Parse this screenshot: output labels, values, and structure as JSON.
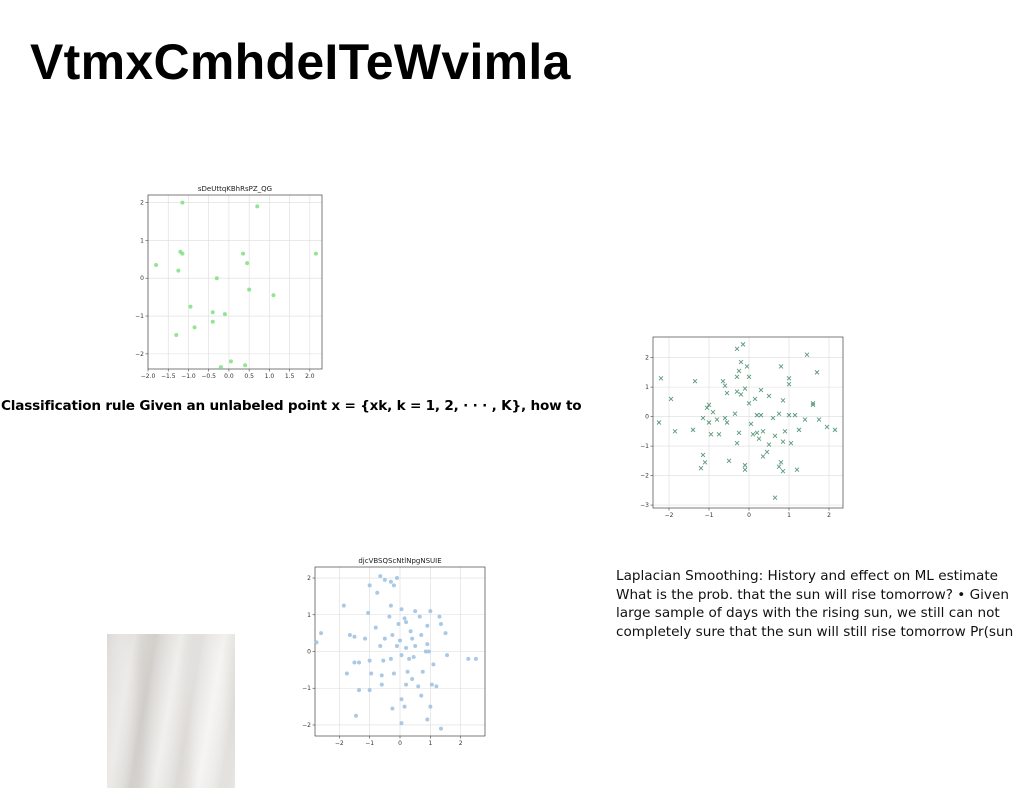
{
  "page": {
    "title": "VtmxCmhdeITeWvimla",
    "rule_text": "Classification rule Given an unlabeled point x = {xk, k = 1, 2, · · · , K}, how to",
    "smoothing_lines": [
      "Laplacian Smoothing: History and effect on ML estimate",
      "What is the prob. that the sun will rise tomorrow? • Given",
      "large sample of days with the rising sun, we still can not",
      "completely sure that the sun will still rise tomorrow Pr(sun"
    ],
    "photo_icon": "fabric-photo"
  },
  "chart_data": [
    {
      "type": "scatter",
      "title": "sDeUttqKBhRsPZ_QG",
      "marker": "dot",
      "color": "#7fe07f",
      "grid": true,
      "xlim": [
        -2.0,
        2.3
      ],
      "ylim": [
        -2.4,
        2.2
      ],
      "xticks": [
        -2.0,
        -1.5,
        -1.0,
        -0.5,
        0.0,
        0.5,
        1.0,
        1.5,
        2.0
      ],
      "xtick_labels": [
        "−2.0",
        "−1.5",
        "−1.0",
        "−0.5",
        "0.0",
        "0.5",
        "1.0",
        "1.5",
        "2.0"
      ],
      "yticks": [
        -2,
        -1,
        0,
        1,
        2
      ],
      "ytick_labels": [
        "−2",
        "−1",
        "0",
        "1",
        "2"
      ],
      "points": [
        [
          -1.15,
          2.0
        ],
        [
          0.7,
          1.9
        ],
        [
          -1.2,
          0.7
        ],
        [
          -1.15,
          0.65
        ],
        [
          -1.8,
          0.35
        ],
        [
          -1.25,
          0.2
        ],
        [
          -0.3,
          0.0
        ],
        [
          0.35,
          0.65
        ],
        [
          0.45,
          0.4
        ],
        [
          2.15,
          0.65
        ],
        [
          0.5,
          -0.3
        ],
        [
          1.1,
          -0.45
        ],
        [
          -0.95,
          -0.75
        ],
        [
          -0.4,
          -0.9
        ],
        [
          -0.1,
          -0.95
        ],
        [
          -0.4,
          -1.15
        ],
        [
          -0.85,
          -1.3
        ],
        [
          -1.3,
          -1.5
        ],
        [
          0.05,
          -2.2
        ],
        [
          0.4,
          -2.3
        ],
        [
          -0.2,
          -2.35
        ]
      ]
    },
    {
      "type": "scatter",
      "title": "",
      "marker": "x",
      "color": "#5a9a7a",
      "grid": true,
      "xlim": [
        -2.4,
        2.35
      ],
      "ylim": [
        -3.1,
        2.7
      ],
      "xticks": [
        -2,
        -1,
        0,
        1,
        2
      ],
      "xtick_labels": [
        "−2",
        "−1",
        "0",
        "1",
        "2"
      ],
      "yticks": [
        -3,
        -2,
        -1,
        0,
        1,
        2
      ],
      "ytick_labels": [
        "−3",
        "−2",
        "−1",
        "0",
        "1",
        "2"
      ],
      "points": [
        [
          -0.15,
          2.45
        ],
        [
          -0.3,
          2.3
        ],
        [
          1.45,
          2.1
        ],
        [
          -0.2,
          1.85
        ],
        [
          -0.05,
          1.7
        ],
        [
          -0.25,
          1.55
        ],
        [
          0.8,
          1.7
        ],
        [
          -2.2,
          1.3
        ],
        [
          -0.65,
          1.2
        ],
        [
          -0.3,
          1.35
        ],
        [
          0.0,
          1.35
        ],
        [
          1.0,
          1.3
        ],
        [
          1.7,
          1.5
        ],
        [
          -1.35,
          1.2
        ],
        [
          -0.6,
          1.05
        ],
        [
          1.0,
          1.1
        ],
        [
          -1.95,
          0.6
        ],
        [
          -0.55,
          0.8
        ],
        [
          -0.3,
          0.85
        ],
        [
          -0.1,
          0.95
        ],
        [
          -0.2,
          0.75
        ],
        [
          0.3,
          0.9
        ],
        [
          0.5,
          0.7
        ],
        [
          0.85,
          0.55
        ],
        [
          1.6,
          0.45
        ],
        [
          -1.0,
          0.4
        ],
        [
          -0.9,
          0.15
        ],
        [
          0.0,
          0.45
        ],
        [
          0.15,
          0.6
        ],
        [
          -0.35,
          0.1
        ],
        [
          0.3,
          0.05
        ],
        [
          0.75,
          0.1
        ],
        [
          1.15,
          0.05
        ],
        [
          -1.05,
          0.3
        ],
        [
          -0.8,
          -0.1
        ],
        [
          -0.6,
          -0.05
        ],
        [
          0.05,
          -0.25
        ],
        [
          0.2,
          0.05
        ],
        [
          0.6,
          -0.05
        ],
        [
          1.0,
          0.05
        ],
        [
          1.4,
          -0.1
        ],
        [
          1.75,
          -0.1
        ],
        [
          -2.25,
          -0.2
        ],
        [
          -1.15,
          -0.05
        ],
        [
          -1.0,
          -0.2
        ],
        [
          -0.55,
          -0.2
        ],
        [
          -0.25,
          -0.55
        ],
        [
          0.35,
          -0.5
        ],
        [
          0.65,
          -0.65
        ],
        [
          0.9,
          -0.5
        ],
        [
          1.25,
          -0.45
        ],
        [
          1.95,
          -0.35
        ],
        [
          -1.85,
          -0.5
        ],
        [
          -1.4,
          -0.45
        ],
        [
          -0.95,
          -0.6
        ],
        [
          -0.75,
          -0.6
        ],
        [
          -0.3,
          -0.9
        ],
        [
          0.25,
          -0.75
        ],
        [
          0.5,
          -0.95
        ],
        [
          0.85,
          -0.85
        ],
        [
          1.05,
          -0.9
        ],
        [
          2.15,
          -0.45
        ],
        [
          0.2,
          -0.55
        ],
        [
          -1.15,
          -1.3
        ],
        [
          -1.1,
          -1.55
        ],
        [
          -1.2,
          -1.75
        ],
        [
          -0.5,
          -1.5
        ],
        [
          0.45,
          -1.2
        ],
        [
          0.35,
          -1.35
        ],
        [
          0.8,
          -1.55
        ],
        [
          0.75,
          -1.7
        ],
        [
          -0.1,
          -1.65
        ],
        [
          -0.1,
          -1.8
        ],
        [
          0.85,
          -1.85
        ],
        [
          1.2,
          -1.8
        ],
        [
          0.65,
          -2.75
        ],
        [
          1.6,
          0.4
        ],
        [
          0.1,
          -0.6
        ]
      ]
    },
    {
      "type": "scatter",
      "title": "djcVBSQScNtlNpgNSUIE",
      "marker": "dot",
      "color": "#9bbfe0",
      "grid": true,
      "xlim": [
        -2.8,
        2.8
      ],
      "ylim": [
        -2.3,
        2.3
      ],
      "xticks": [
        -2,
        -1,
        0,
        1,
        2
      ],
      "xtick_labels": [
        "−2",
        "−1",
        "0",
        "1",
        "2"
      ],
      "yticks": [
        -2,
        -1,
        0,
        1,
        2
      ],
      "ytick_labels": [
        "−2",
        "−1",
        "0",
        "1",
        "2"
      ],
      "points": [
        [
          -0.65,
          2.05
        ],
        [
          -0.5,
          1.95
        ],
        [
          -0.1,
          2.0
        ],
        [
          -1.0,
          1.8
        ],
        [
          -0.75,
          1.6
        ],
        [
          -0.3,
          1.9
        ],
        [
          -0.2,
          1.8
        ],
        [
          -1.85,
          1.25
        ],
        [
          0.05,
          1.15
        ],
        [
          0.5,
          1.1
        ],
        [
          1.0,
          1.1
        ],
        [
          -1.05,
          1.05
        ],
        [
          -0.35,
          0.95
        ],
        [
          0.15,
          0.9
        ],
        [
          0.65,
          0.95
        ],
        [
          1.3,
          0.95
        ],
        [
          -2.6,
          0.5
        ],
        [
          -1.65,
          0.45
        ],
        [
          -1.5,
          0.4
        ],
        [
          -0.8,
          0.65
        ],
        [
          -0.05,
          0.75
        ],
        [
          0.2,
          0.8
        ],
        [
          0.35,
          0.55
        ],
        [
          0.9,
          0.7
        ],
        [
          1.35,
          0.75
        ],
        [
          -2.75,
          0.25
        ],
        [
          -1.15,
          0.35
        ],
        [
          -0.5,
          0.35
        ],
        [
          -0.25,
          0.45
        ],
        [
          0.0,
          0.3
        ],
        [
          0.4,
          0.35
        ],
        [
          0.7,
          0.45
        ],
        [
          1.5,
          0.5
        ],
        [
          -0.65,
          0.15
        ],
        [
          -0.1,
          0.15
        ],
        [
          0.2,
          0.1
        ],
        [
          0.5,
          0.15
        ],
        [
          0.9,
          0.2
        ],
        [
          -1.5,
          -0.3
        ],
        [
          -1.35,
          -0.3
        ],
        [
          -1.0,
          -0.25
        ],
        [
          -0.55,
          -0.25
        ],
        [
          -0.3,
          -0.2
        ],
        [
          0.05,
          -0.1
        ],
        [
          0.45,
          -0.15
        ],
        [
          0.85,
          0.0
        ],
        [
          0.95,
          0.0
        ],
        [
          1.55,
          -0.1
        ],
        [
          2.25,
          -0.2
        ],
        [
          2.5,
          -0.2
        ],
        [
          -1.75,
          -0.6
        ],
        [
          -0.95,
          -0.6
        ],
        [
          -0.6,
          -0.65
        ],
        [
          -0.2,
          -0.6
        ],
        [
          0.25,
          -0.55
        ],
        [
          0.4,
          -0.75
        ],
        [
          0.75,
          -0.55
        ],
        [
          1.1,
          -0.35
        ],
        [
          -1.35,
          -1.05
        ],
        [
          -1.0,
          -1.05
        ],
        [
          -0.6,
          -0.9
        ],
        [
          0.2,
          -0.9
        ],
        [
          0.6,
          -0.95
        ],
        [
          1.05,
          -0.9
        ],
        [
          1.2,
          -0.95
        ],
        [
          0.05,
          -1.3
        ],
        [
          0.7,
          -1.2
        ],
        [
          -0.25,
          -1.55
        ],
        [
          0.15,
          -1.5
        ],
        [
          1.0,
          -1.5
        ],
        [
          -1.45,
          -1.75
        ],
        [
          0.05,
          -1.95
        ],
        [
          0.9,
          -1.85
        ],
        [
          1.35,
          -2.1
        ],
        [
          0.3,
          -0.2
        ],
        [
          -0.3,
          1.25
        ]
      ]
    }
  ]
}
